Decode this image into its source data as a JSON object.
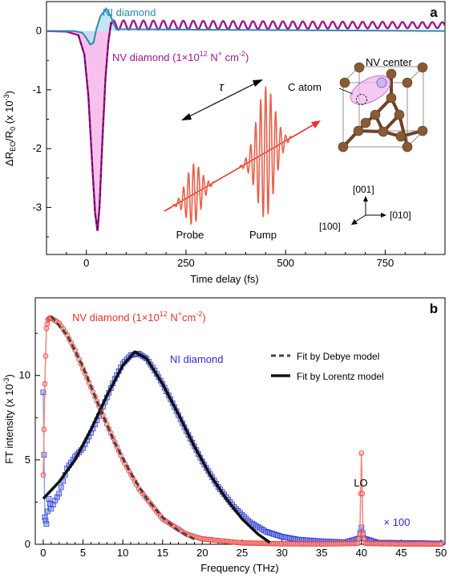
{
  "colors": {
    "ni_a": "#2a8ab5",
    "nv_a": "#a3168e",
    "nv_a_fill": "#f7b6ea",
    "ni_a_fill": "#b8e2f2",
    "nv_b": "#e8322e",
    "nv_b_line": "#f28a86",
    "ni_b": "#2b2bd6",
    "ni_b_fill": "#7f9fe8",
    "fit": "#111111",
    "pulse": "#e8604a",
    "arrow": "#e8322e",
    "atom": "#8a5a34",
    "bond": "#6e4325",
    "nv_ellipse": "#e8a0e8"
  },
  "chart_data": [
    {
      "type": "line",
      "panel_label": "a",
      "xlabel": "Time delay (fs)",
      "ylabel_base": "ΔR",
      "ylabel_sub": "EO",
      "ylabel_mid": "/R",
      "ylabel_sub2": "0",
      "ylabel_unit_base": " (x 10",
      "ylabel_unit_exp": "-3",
      "ylabel_unit_end": ")",
      "xlim": [
        -100,
        900
      ],
      "ylim": [
        -3.8,
        0.5
      ],
      "xticks": [
        0,
        250,
        500,
        750
      ],
      "yticks": [
        0,
        -1,
        -2,
        -3
      ],
      "ytick_labels": [
        "0",
        "-1",
        "-2",
        "-3"
      ],
      "series": [
        {
          "name": "NI diamond",
          "x": [
            -100,
            -60,
            -30,
            -10,
            0,
            10,
            18,
            25,
            35,
            50,
            60,
            75,
            900
          ],
          "y": [
            0,
            0,
            0,
            -0.03,
            -0.12,
            -0.23,
            -0.2,
            0.03,
            0.25,
            0.38,
            0.27,
            0.03,
            0
          ]
        },
        {
          "name": "NV diamond",
          "label_base": "NV diamond (1×10",
          "label_exp": "12",
          "label_end": " N",
          "label_sup2": "+",
          "label_end2": " cm",
          "label_exp3": "-2",
          "label_tail": ")",
          "x": [
            -100,
            -50,
            -20,
            -5,
            5,
            15,
            22,
            28,
            33,
            40,
            48,
            55,
            62
          ],
          "y": [
            0,
            -0.01,
            -0.07,
            -0.4,
            -1.1,
            -2.3,
            -3.1,
            -3.4,
            -3.0,
            -1.9,
            -0.8,
            -0.2,
            0.15
          ]
        }
      ],
      "oscillation": {
        "x_start": 62,
        "x_end": 900,
        "period_fs": 25,
        "mean": 0.1,
        "amp_start": 0.08,
        "amp_end": 0.05
      },
      "annotations": {
        "tau": "τ",
        "probe": "Probe",
        "pump": "Pump",
        "c_atom": "C atom",
        "nv_center": "NV center",
        "dir_001": "[001]",
        "dir_010": "[010]",
        "dir_100": "[100]"
      }
    },
    {
      "type": "scatter",
      "panel_label": "b",
      "xlabel": "Frequency (THz)",
      "ylabel_base": "FT intensity (x 10",
      "ylabel_exp": "-3",
      "ylabel_end": ")",
      "xlim": [
        -1,
        50.5
      ],
      "ylim": [
        0,
        14.6
      ],
      "xticks": [
        0,
        5,
        10,
        15,
        20,
        25,
        30,
        35,
        40,
        45,
        50
      ],
      "yticks": [
        0,
        5,
        10
      ],
      "series": [
        {
          "name": "NV diamond",
          "label_base": "NV diamond (1×10",
          "label_exp": "12",
          "label_end": " N",
          "label_sup2": "+",
          "label_end2": "cm",
          "label_exp3": "-2",
          "label_tail": ")",
          "x": [
            0,
            0.2,
            0.4,
            0.6,
            0.8,
            1,
            2,
            3,
            4,
            6,
            8,
            10,
            12,
            15,
            18,
            20,
            25,
            30,
            35,
            39.5,
            39.8,
            40,
            40.2,
            40.5,
            45,
            50
          ],
          "y": [
            4.1,
            9.5,
            12.8,
            13.3,
            13.4,
            13.4,
            13.1,
            12.4,
            11.5,
            9.3,
            7.1,
            5.0,
            3.3,
            1.5,
            0.6,
            0.32,
            0.08,
            0.03,
            0.02,
            0.05,
            0.6,
            5.4,
            0.6,
            0.05,
            0.02,
            0.02
          ]
        },
        {
          "name": "NI diamond",
          "x": [
            0,
            0.2,
            0.4,
            0.7,
            1,
            1.5,
            2,
            3,
            4,
            5,
            6,
            7,
            8,
            9,
            10,
            11,
            12,
            13,
            14,
            15,
            16,
            18,
            20,
            22,
            24,
            26,
            28,
            30,
            32,
            35,
            38,
            39.7,
            40,
            40.3,
            42,
            45,
            50
          ],
          "y": [
            9.0,
            1.6,
            1.2,
            2.7,
            2.1,
            2.6,
            3.0,
            4.5,
            5.2,
            5.7,
            6.6,
            7.6,
            8.7,
            9.8,
            10.7,
            11.2,
            11.3,
            11.0,
            10.3,
            9.5,
            8.6,
            6.7,
            4.9,
            3.4,
            2.2,
            1.3,
            0.75,
            0.45,
            0.28,
            0.18,
            0.12,
            0.35,
            1.0,
            0.35,
            0.1,
            0.08,
            0.05
          ]
        },
        {
          "name": "Fit by Debye model",
          "x": [
            1,
            3,
            5,
            7,
            9,
            11,
            13,
            15,
            17,
            19
          ],
          "y": [
            13.5,
            12.4,
            10.5,
            8.2,
            6.0,
            4.2,
            2.7,
            1.6,
            0.8,
            0.3
          ]
        },
        {
          "name": "Fit by Lorentz model",
          "x": [
            0,
            2,
            4,
            6,
            8,
            10,
            11.5,
            13,
            15,
            17,
            19,
            21,
            23,
            25,
            27,
            28.5
          ],
          "y": [
            2.7,
            3.7,
            5.0,
            6.8,
            8.8,
            10.6,
            11.4,
            11.0,
            9.5,
            7.7,
            5.8,
            4.1,
            2.7,
            1.5,
            0.6,
            0.1
          ]
        }
      ],
      "annotations": {
        "lo": "LO",
        "x100": "× 100"
      },
      "legend": {
        "debye": "Fit by Debye model",
        "lorentz": "Fit by Lorentz model"
      }
    }
  ]
}
